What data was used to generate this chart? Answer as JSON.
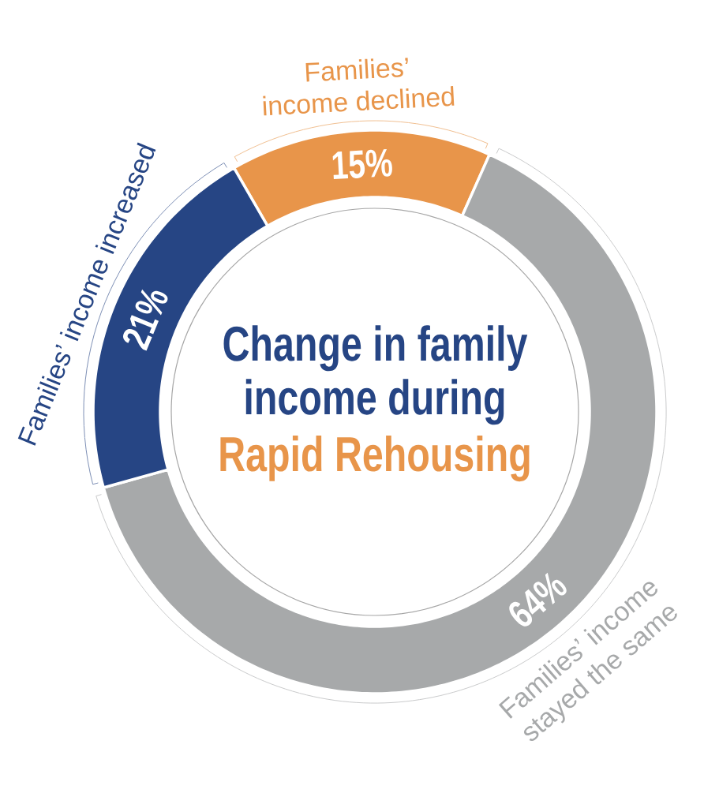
{
  "chart_data": {
    "type": "donut",
    "title": "Change in family income during",
    "subtitle": "Rapid Rehousing",
    "categories": [
      "Families’ income declined",
      "Families’ income stayed the same",
      "Families’ income increased"
    ],
    "values": [
      15,
      64,
      21
    ],
    "colors": [
      "#e8954a",
      "#a7a9aa",
      "#264584"
    ],
    "value_labels": [
      "15%",
      "64%",
      "21%"
    ]
  }
}
